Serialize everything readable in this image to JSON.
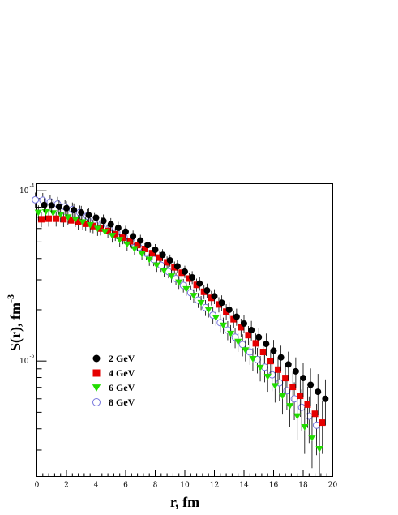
{
  "chart_data": {
    "type": "scatter",
    "xlabel": "r, fm",
    "ylabel_main": "S(r), fm",
    "ylabel_sup": "-3",
    "xlim": [
      0,
      20
    ],
    "ylog": true,
    "ylim": [
      2.1e-06,
      0.00011
    ],
    "xticks": [
      0,
      2,
      4,
      6,
      8,
      10,
      12,
      14,
      16,
      18,
      20
    ],
    "xtick_labels": [
      "0",
      "2",
      "4",
      "6",
      "8",
      "10",
      "12",
      "14",
      "16",
      "18",
      "20"
    ],
    "yticks": [
      {
        "value": 0.0001,
        "mantissa": "10",
        "exponent": "-4"
      },
      {
        "value": 1e-05,
        "mantissa": "10",
        "exponent": "-5"
      }
    ],
    "legend_position": "lower-left",
    "x": [
      0.3,
      0.8,
      1.3,
      1.8,
      2.3,
      2.8,
      3.3,
      3.8,
      4.3,
      4.8,
      5.3,
      5.8,
      6.3,
      6.8,
      7.3,
      7.8,
      8.3,
      8.8,
      9.3,
      9.8,
      10.3,
      10.8,
      11.3,
      11.8,
      12.3,
      12.8,
      13.3,
      13.8,
      14.3,
      14.8,
      15.3,
      15.8,
      16.3,
      16.8,
      17.3,
      17.8,
      18.3,
      18.8,
      19.3
    ],
    "series": [
      {
        "name": "2 GeV",
        "marker": "circle",
        "color": "#000000",
        "dx": 0.2,
        "values": [
          8.25e-05,
          8.2e-05,
          8.05e-05,
          7.9e-05,
          7.7e-05,
          7.45e-05,
          7.2e-05,
          6.95e-05,
          6.65e-05,
          6.35e-05,
          6.05e-05,
          5.75e-05,
          5.4e-05,
          5.1e-05,
          4.8e-05,
          4.5e-05,
          4.2e-05,
          3.9e-05,
          3.6e-05,
          3.35e-05,
          3.1e-05,
          2.85e-05,
          2.6e-05,
          2.4e-05,
          2.2e-05,
          2e-05,
          1.82e-05,
          1.66e-05,
          1.52e-05,
          1.38e-05,
          1.26e-05,
          1.15e-05,
          1.05e-05,
          9.55e-06,
          8.7e-06,
          7.95e-06,
          7.25e-06,
          6.6e-06,
          6e-06
        ],
        "errors": [
          8e-06,
          8e-06,
          7.8e-06,
          7.6e-06,
          7.3e-06,
          7e-06,
          6.7e-06,
          6.4e-06,
          6e-06,
          5.6e-06,
          5.2e-06,
          4.8e-06,
          4.4e-06,
          4.1e-06,
          3.8e-06,
          3.6e-06,
          3.4e-06,
          3.2e-06,
          3e-06,
          2.8e-06,
          2.7e-06,
          2.6e-06,
          2.5e-06,
          2.4e-06,
          2.3e-06,
          2.2e-06,
          2.1e-06,
          2e-06,
          2e-06,
          1.9e-06,
          1.9e-06,
          1.8e-06,
          1.8e-06,
          1.8e-06,
          1.8e-06,
          1.8e-06,
          1.8e-06,
          1.8e-06,
          1.8e-06
        ]
      },
      {
        "name": "4 GeV",
        "marker": "square",
        "color": "#e60000",
        "dx": 0.0,
        "values": [
          6.8e-05,
          6.85e-05,
          6.85e-05,
          6.8e-05,
          6.7e-05,
          6.55e-05,
          6.4e-05,
          6.2e-05,
          6e-05,
          5.8e-05,
          5.55e-05,
          5.3e-05,
          5.05e-05,
          4.8e-05,
          4.55e-05,
          4.3e-05,
          4.05e-05,
          3.8e-05,
          3.55e-05,
          3.3e-05,
          3.05e-05,
          2.8e-05,
          2.55e-05,
          2.35e-05,
          2.15e-05,
          1.95e-05,
          1.76e-05,
          1.58e-05,
          1.42e-05,
          1.27e-05,
          1.13e-05,
          1e-05,
          8.9e-06,
          7.95e-06,
          7.05e-06,
          6.25e-06,
          5.55e-06,
          4.9e-06,
          4.35e-06
        ],
        "errors": [
          7e-06,
          7e-06,
          6.9e-06,
          6.8e-06,
          6.6e-06,
          6.3e-06,
          6e-06,
          5.7e-06,
          5.4e-06,
          5.1e-06,
          4.8e-06,
          4.5e-06,
          4.2e-06,
          3.9e-06,
          3.7e-06,
          3.5e-06,
          3.3e-06,
          3.1e-06,
          2.9e-06,
          2.8e-06,
          2.6e-06,
          2.5e-06,
          2.4e-06,
          2.3e-06,
          2.2e-06,
          2.1e-06,
          2e-06,
          1.9e-06,
          1.85e-06,
          1.8e-06,
          1.75e-06,
          1.7e-06,
          1.65e-06,
          1.6e-06,
          1.6e-06,
          1.55e-06,
          1.5e-06,
          1.5e-06,
          1.5e-06
        ]
      },
      {
        "name": "6 GeV",
        "marker": "triangle",
        "color": "#22dd00",
        "dx": -0.2,
        "values": [
          7.45e-05,
          7.5e-05,
          7.4e-05,
          7.25e-05,
          7e-05,
          6.8e-05,
          6.55e-05,
          6.3e-05,
          6e-05,
          5.75e-05,
          5.45e-05,
          5.15e-05,
          4.85e-05,
          4.55e-05,
          4.25e-05,
          3.95e-05,
          3.65e-05,
          3.4e-05,
          3.15e-05,
          2.9e-05,
          2.65e-05,
          2.42e-05,
          2.2e-05,
          2e-05,
          1.8e-05,
          1.62e-05,
          1.45e-05,
          1.3e-05,
          1.16e-05,
          1.03e-05,
          9.15e-06,
          8.1e-06,
          7.15e-06,
          6.25e-06,
          5.45e-06,
          4.75e-06,
          4.1e-06,
          3.55e-06,
          3.05e-06
        ],
        "errors": [
          7.5e-06,
          7.5e-06,
          7.4e-06,
          7.2e-06,
          7e-06,
          6.7e-06,
          6.4e-06,
          6.1e-06,
          5.7e-06,
          5.3e-06,
          4.9e-06,
          4.5e-06,
          4.1e-06,
          3.8e-06,
          3.5e-06,
          3.3e-06,
          3.1e-06,
          2.9e-06,
          2.7e-06,
          2.5e-06,
          2.35e-06,
          2.2e-06,
          2.1e-06,
          2e-06,
          1.9e-06,
          1.8e-06,
          1.75e-06,
          1.7e-06,
          1.65e-06,
          1.6e-06,
          1.55e-06,
          1.5e-06,
          1.45e-06,
          1.4e-06,
          1.35e-06,
          1.3e-06,
          1.25e-06,
          1.2e-06,
          1.15e-06
        ]
      },
      {
        "name": "8 GeV",
        "marker": "open-circle",
        "color": "#7777dd",
        "dx": -0.4,
        "values": [
          8.85e-05,
          8.8e-05,
          8.6e-05,
          8.35e-05,
          8.05e-05,
          7.75e-05,
          7.45e-05,
          7.1e-05,
          6.75e-05,
          6.4e-05,
          6.05e-05,
          5.7e-05,
          5.35e-05,
          5e-05,
          4.65e-05,
          4.3e-05,
          3.95e-05,
          3.65e-05,
          3.35e-05,
          3.05e-05,
          2.78e-05,
          2.52e-05,
          2.28e-05,
          2.06e-05,
          1.86e-05,
          1.68e-05,
          1.52e-05,
          1.38e-05,
          1.25e-05,
          1.13e-05,
          1.02e-05,
          9.2e-06,
          8.3e-06,
          7.45e-06,
          6.7e-06,
          6e-06,
          5.35e-06,
          4.75e-06,
          4.2e-06
        ],
        "errors": [
          9e-06,
          9e-06,
          8.8e-06,
          8.5e-06,
          8.2e-06,
          7.8e-06,
          7.4e-06,
          7e-06,
          6.5e-06,
          6e-06,
          5.5e-06,
          5.1e-06,
          4.7e-06,
          4.3e-06,
          4e-06,
          3.7e-06,
          3.4e-06,
          3.1e-06,
          2.9e-06,
          2.7e-06,
          2.55e-06,
          2.4e-06,
          2.3e-06,
          2.2e-06,
          2.1e-06,
          2e-06,
          1.95e-06,
          1.9e-06,
          1.85e-06,
          1.8e-06,
          1.75e-06,
          1.7e-06,
          1.65e-06,
          1.6e-06,
          1.55e-06,
          1.5e-06,
          1.45e-06,
          1.45e-06,
          1.4e-06
        ]
      }
    ]
  }
}
